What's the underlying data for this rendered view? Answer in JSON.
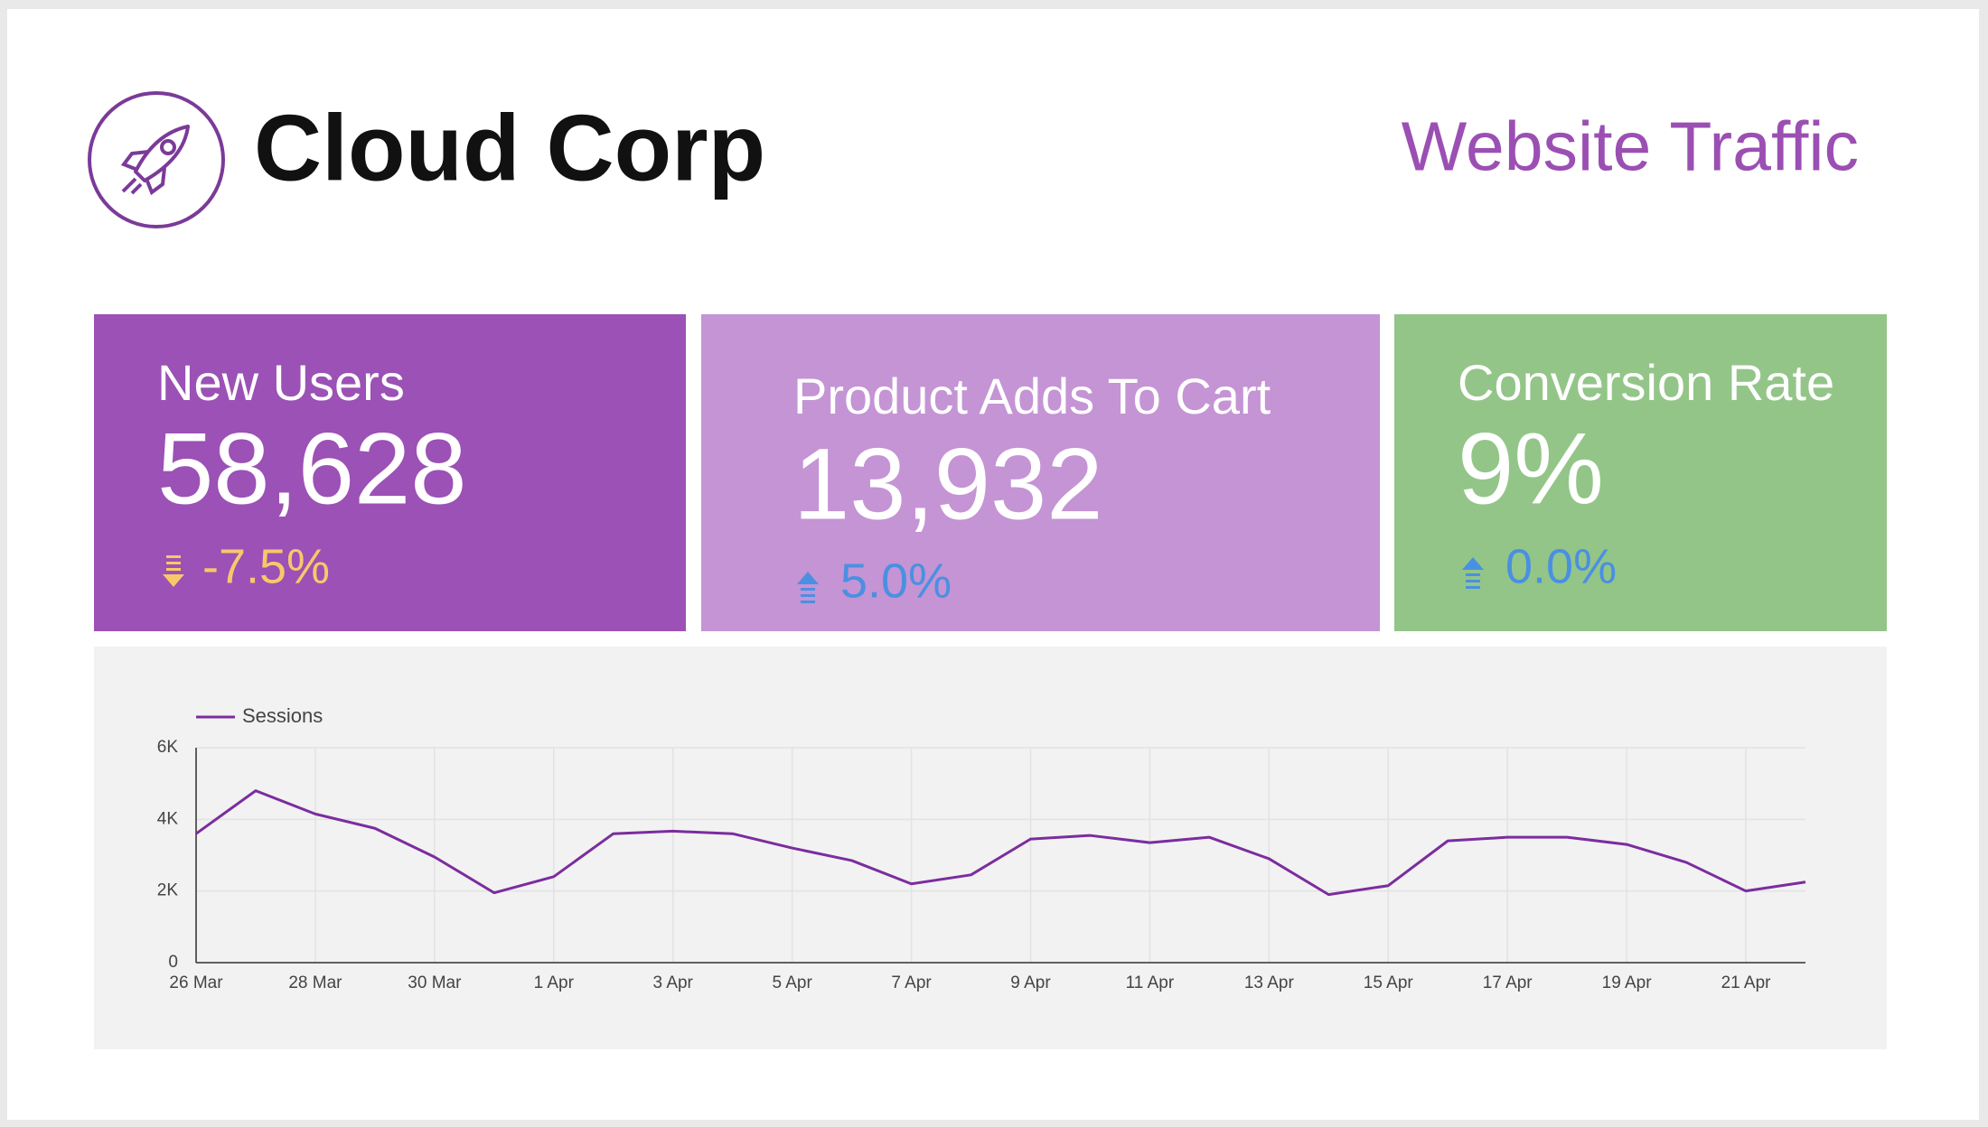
{
  "header": {
    "brand": "Cloud Corp",
    "report_title": "Website Traffic"
  },
  "kpis": [
    {
      "label": "New Users",
      "value": "58,628",
      "change": "-7.5%"
    },
    {
      "label": "Product Adds To Cart",
      "value": "13,932",
      "change": "5.0%"
    },
    {
      "label": "Conversion Rate",
      "value": "9%",
      "change": "0.0%"
    }
  ],
  "chart_data": {
    "type": "line",
    "categories": [
      "26 Mar",
      null,
      "28 Mar",
      null,
      "30 Mar",
      null,
      "1 Apr",
      null,
      "3 Apr",
      null,
      "5 Apr",
      null,
      "7 Apr",
      null,
      "9 Apr",
      null,
      "11 Apr",
      null,
      "13 Apr",
      null,
      "15 Apr",
      null,
      "17 Apr",
      null,
      "19 Apr",
      null,
      "21 Apr",
      null
    ],
    "series": [
      {
        "name": "Sessions",
        "color": "#7b2d9e",
        "values": [
          3600,
          4800,
          4150,
          3750,
          2950,
          1950,
          2400,
          3600,
          3670,
          3600,
          3200,
          2850,
          2200,
          2450,
          3450,
          3550,
          3350,
          3500,
          2900,
          1900,
          2150,
          3400,
          3500,
          3500,
          3300,
          2800,
          2000,
          2250
        ]
      }
    ],
    "ylim": [
      0,
      6000
    ],
    "yticks": [
      0,
      {
        "value": 2000,
        "label": "2K"
      },
      {
        "value": 4000,
        "label": "4K"
      },
      {
        "value": 6000,
        "label": "6K"
      }
    ],
    "grid": true,
    "legend": "top-left"
  }
}
